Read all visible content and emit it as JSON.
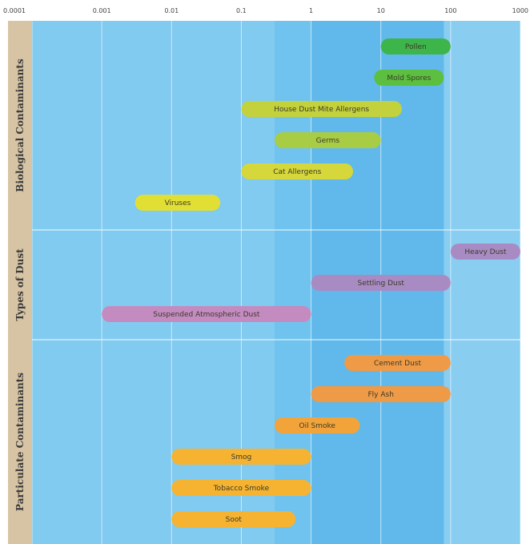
{
  "chart_data": {
    "type": "bar",
    "orientation": "horizontal-range",
    "x_scale": "log",
    "xlim": [
      0.0001,
      1000
    ],
    "x_ticks": [
      "0.0001",
      "0.001",
      "0.01",
      "0.1",
      "1",
      "10",
      "100",
      "1000"
    ],
    "grid": true,
    "groups": [
      {
        "label": "Biological Contaminants",
        "items": [
          {
            "label": "Pollen",
            "start": 10,
            "end": 100,
            "color": "#3db54a"
          },
          {
            "label": "Mold Spores",
            "start": 8,
            "end": 80,
            "color": "#5cbf3f"
          },
          {
            "label": "House Dust Mite Allergens",
            "start": 0.1,
            "end": 20,
            "color": "#c3d23c"
          },
          {
            "label": "Germs",
            "start": 0.3,
            "end": 10,
            "color": "#a9cc45"
          },
          {
            "label": "Cat Allergens",
            "start": 0.1,
            "end": 4,
            "color": "#d5d73a"
          },
          {
            "label": "Viruses",
            "start": 0.003,
            "end": 0.05,
            "color": "#e2df34"
          }
        ]
      },
      {
        "label": "Types of Dust",
        "items": [
          {
            "label": "Heavy Dust",
            "start": 100,
            "end": 1000,
            "color": "#a98bc4"
          },
          {
            "label": "Settling Dust",
            "start": 1,
            "end": 100,
            "color": "#a98bc4"
          },
          {
            "label": "Suspended Atmospheric Dust",
            "start": 0.001,
            "end": 1,
            "color": "#c48bc0"
          }
        ]
      },
      {
        "label": "Particulate Contaminants",
        "items": [
          {
            "label": "Cement Dust",
            "start": 3,
            "end": 100,
            "color": "#ef9a46"
          },
          {
            "label": "Fly Ash",
            "start": 1,
            "end": 100,
            "color": "#ef9a46"
          },
          {
            "label": "Oil Smoke",
            "start": 0.3,
            "end": 5,
            "color": "#f2a43a"
          },
          {
            "label": "Smog",
            "start": 0.01,
            "end": 1,
            "color": "#f5b331"
          },
          {
            "label": "Tobacco Smoke",
            "start": 0.01,
            "end": 1,
            "color": "#f5b331"
          },
          {
            "label": "Soot",
            "start": 0.01,
            "end": 0.6,
            "color": "#f5b331"
          }
        ]
      }
    ]
  },
  "colors": {
    "plot_background": "#70c3ee",
    "group_label_band": "#d7c4a4",
    "gridline": "#ffffff"
  }
}
